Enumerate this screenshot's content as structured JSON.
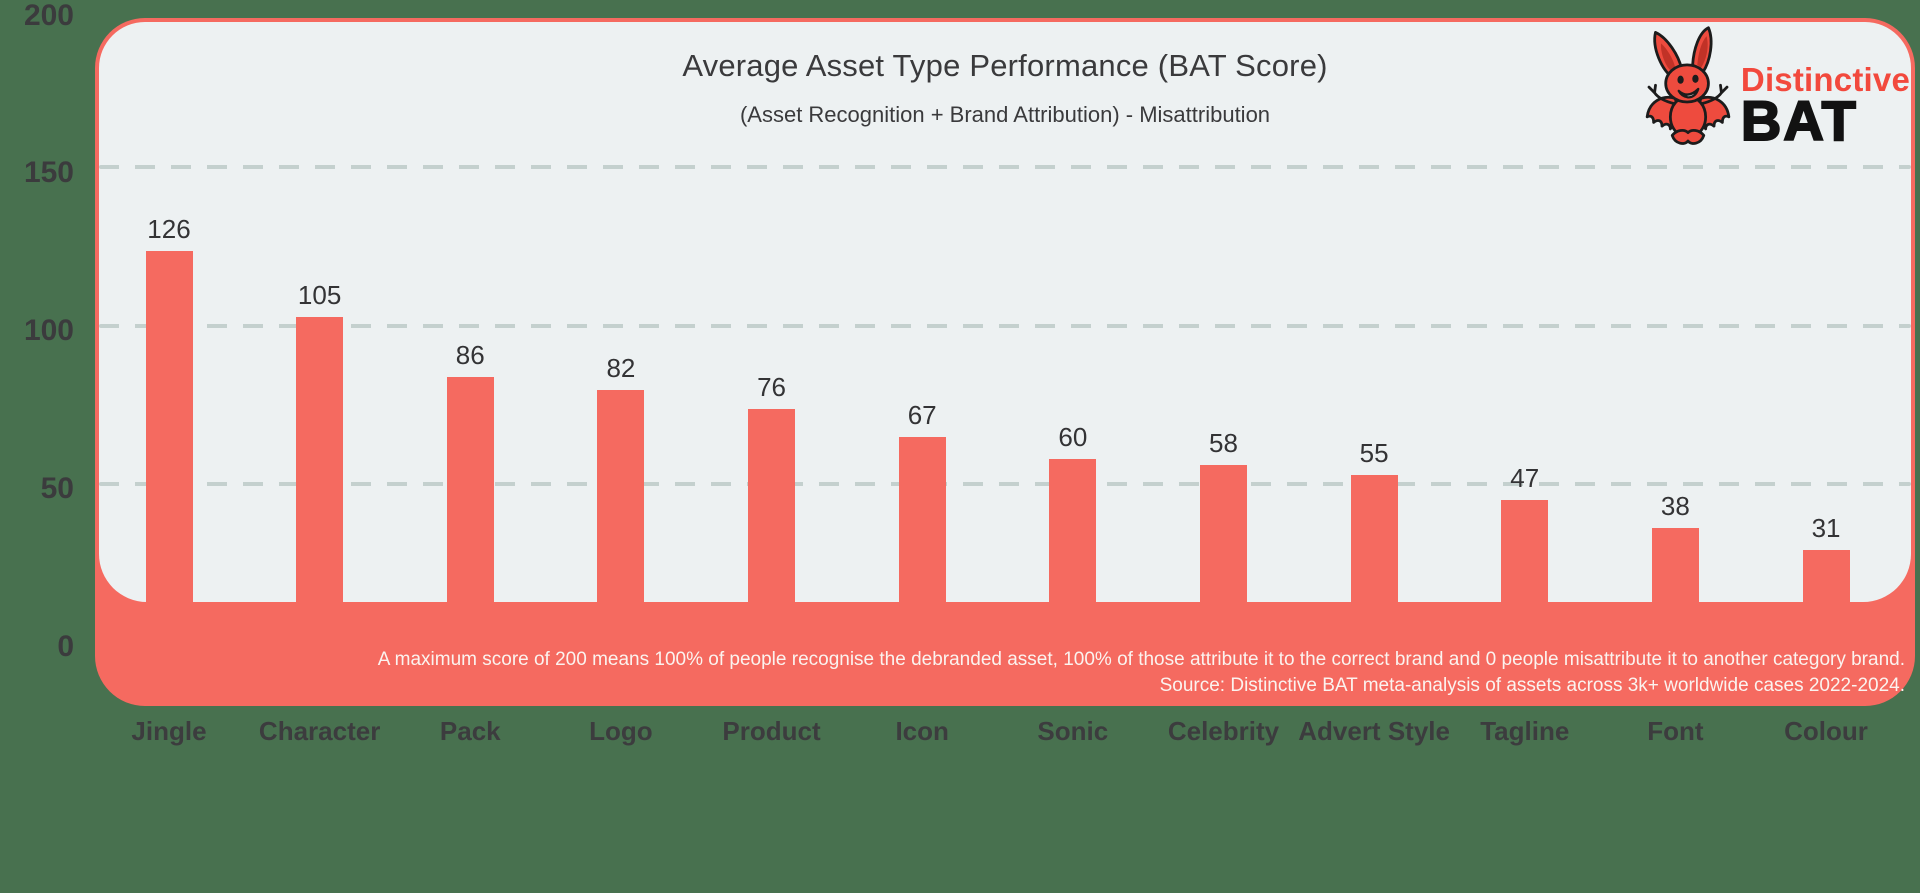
{
  "colors": {
    "background_green": "#48714F",
    "accent_salmon": "#F56A60",
    "card_light": "#EDF1F2",
    "gridline": "#C4D0CE",
    "dark_text": "#3A3A3C",
    "footnote_text": "#FBF3EF",
    "logo_red": "#F2493D",
    "logo_black": "#121212"
  },
  "header": {
    "title": "Average Asset Type Performance (BAT Score)",
    "subtitle": "(Asset Recognition + Brand Attribution) - Misattribution"
  },
  "logo": {
    "mascot": "bat-mascot",
    "brand_top": "Distinctive",
    "brand_bottom": "BAT"
  },
  "chart_data": {
    "type": "bar",
    "title": "Average Asset Type Performance (BAT Score)",
    "subtitle": "(Asset Recognition + Brand Attribution) - Misattribution",
    "categories": [
      "Jingle",
      "Character",
      "Pack",
      "Logo",
      "Product",
      "Icon",
      "Sonic",
      "Celebrity",
      "Advert Style",
      "Tagline",
      "Font",
      "Colour"
    ],
    "values": [
      126,
      105,
      86,
      82,
      76,
      67,
      60,
      58,
      55,
      47,
      38,
      31
    ],
    "bar_color": "#F56A60",
    "xlabel": "",
    "ylabel": "",
    "ylim": [
      0,
      200
    ],
    "yticks": [
      200,
      150,
      100,
      50,
      0
    ],
    "gridlines_at": [
      150,
      100,
      50
    ],
    "grid_style": "dashed",
    "legend_position": "none"
  },
  "footnote": {
    "line1": "A maximum score of 200 means 100% of people recognise the debranded asset, 100% of those attribute it to the correct brand and 0 people misattribute it to another category brand.",
    "line2": "Source: Distinctive BAT meta-analysis of assets across 3k+ worldwide cases 2022-2024."
  }
}
